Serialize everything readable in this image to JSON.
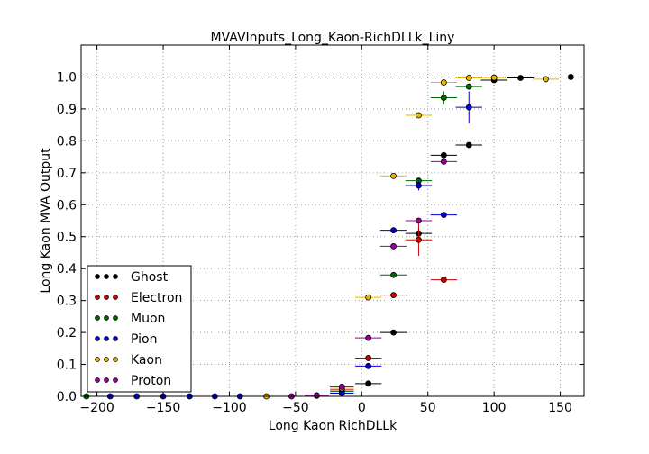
{
  "chart_data": {
    "type": "scatter",
    "title": "MVAVInputs_Long_Kaon-RichDLLk_Liny",
    "xlabel": "Long Kaon RichDLLk",
    "ylabel": "Long Kaon MVA Output",
    "xlim": [
      -212,
      168
    ],
    "ylim": [
      0.0,
      1.1
    ],
    "x_ticks": [
      -200,
      -150,
      -100,
      -50,
      0,
      50,
      100,
      150
    ],
    "x_tick_labels": [
      "−200",
      "−150",
      "−100",
      "−50",
      "0",
      "50",
      "100",
      "150"
    ],
    "y_ticks": [
      0.0,
      0.1,
      0.2,
      0.3,
      0.4,
      0.5,
      0.6,
      0.7,
      0.8,
      0.9,
      1.0
    ],
    "y_tick_labels": [
      "0.0",
      "0.1",
      "0.2",
      "0.3",
      "0.4",
      "0.5",
      "0.6",
      "0.7",
      "0.8",
      "0.9",
      "1.0"
    ],
    "reference_line": 1.0,
    "grid": true,
    "legend_position": "lower-left",
    "series": [
      {
        "name": "Ghost",
        "color": "#000000",
        "points": [
          {
            "x": -15,
            "y": 0.03,
            "xerr": 9,
            "yerr": 0.004
          },
          {
            "x": 5,
            "y": 0.04,
            "xerr": 10,
            "yerr": 0.004
          },
          {
            "x": 24,
            "y": 0.2,
            "xerr": 10,
            "yerr": 0.005
          },
          {
            "x": 43,
            "y": 0.51,
            "xerr": 10,
            "yerr": 0.02
          },
          {
            "x": 62,
            "y": 0.755,
            "xerr": 10,
            "yerr": 0.008
          },
          {
            "x": 81,
            "y": 0.787,
            "xerr": 10,
            "yerr": 0.008
          },
          {
            "x": 100,
            "y": 0.99,
            "xerr": 10,
            "yerr": 0.003
          },
          {
            "x": 120,
            "y": 0.997,
            "xerr": 10,
            "yerr": 0.002
          },
          {
            "x": 158,
            "y": 1.0,
            "xerr": 10,
            "yerr": 0.001
          }
        ]
      },
      {
        "name": "Electron",
        "color": "#cc0000",
        "points": [
          {
            "x": -15,
            "y": 0.02,
            "xerr": 9,
            "yerr": 0.004
          },
          {
            "x": 5,
            "y": 0.12,
            "xerr": 10,
            "yerr": 0.006
          },
          {
            "x": 24,
            "y": 0.317,
            "xerr": 10,
            "yerr": 0.008
          },
          {
            "x": 43,
            "y": 0.49,
            "xerr": 10,
            "yerr": 0.05
          },
          {
            "x": 62,
            "y": 0.365,
            "xerr": 10,
            "yerr": 0.006
          }
        ]
      },
      {
        "name": "Muon",
        "color": "#006600",
        "points": [
          {
            "x": -15,
            "y": 0.015,
            "xerr": 9,
            "yerr": 0.004
          },
          {
            "x": 24,
            "y": 0.38,
            "xerr": 10,
            "yerr": 0.008
          },
          {
            "x": 43,
            "y": 0.675,
            "xerr": 10,
            "yerr": 0.01
          },
          {
            "x": 62,
            "y": 0.935,
            "xerr": 10,
            "yerr": 0.02
          },
          {
            "x": 81,
            "y": 0.97,
            "xerr": 10,
            "yerr": 0.01
          },
          {
            "x": -208,
            "y": 0.0,
            "xerr": 0,
            "yerr": 0
          }
        ]
      },
      {
        "name": "Pion",
        "color": "#0000cc",
        "points": [
          {
            "x": -190,
            "y": 0.0,
            "xerr": 0,
            "yerr": 0
          },
          {
            "x": -170,
            "y": 0.0,
            "xerr": 0,
            "yerr": 0
          },
          {
            "x": -150,
            "y": 0.0,
            "xerr": 0,
            "yerr": 0
          },
          {
            "x": -130,
            "y": 0.0,
            "xerr": 0,
            "yerr": 0
          },
          {
            "x": -111,
            "y": 0.0,
            "xerr": 0,
            "yerr": 0
          },
          {
            "x": -92,
            "y": 0.0,
            "xerr": 0,
            "yerr": 0
          },
          {
            "x": -15,
            "y": 0.01,
            "xerr": 9,
            "yerr": 0.003
          },
          {
            "x": 5,
            "y": 0.095,
            "xerr": 10,
            "yerr": 0.005
          },
          {
            "x": 24,
            "y": 0.52,
            "xerr": 10,
            "yerr": 0.008
          },
          {
            "x": 43,
            "y": 0.66,
            "xerr": 10,
            "yerr": 0.015
          },
          {
            "x": 62,
            "y": 0.568,
            "xerr": 10,
            "yerr": 0.006
          },
          {
            "x": 81,
            "y": 0.905,
            "xerr": 10,
            "yerr": 0.05
          }
        ]
      },
      {
        "name": "Kaon",
        "color": "#e6b800",
        "points": [
          {
            "x": -72,
            "y": 0.0,
            "xerr": 0,
            "yerr": 0
          },
          {
            "x": -34,
            "y": 0.002,
            "xerr": 9,
            "yerr": 0.002
          },
          {
            "x": -15,
            "y": 0.025,
            "xerr": 9,
            "yerr": 0.003
          },
          {
            "x": 5,
            "y": 0.31,
            "xerr": 10,
            "yerr": 0.004
          },
          {
            "x": 24,
            "y": 0.69,
            "xerr": 10,
            "yerr": 0.004
          },
          {
            "x": 43,
            "y": 0.88,
            "xerr": 10,
            "yerr": 0.004
          },
          {
            "x": 62,
            "y": 0.983,
            "xerr": 10,
            "yerr": 0.002
          },
          {
            "x": 81,
            "y": 0.997,
            "xerr": 10,
            "yerr": 0.001
          },
          {
            "x": 100,
            "y": 0.998,
            "xerr": 10,
            "yerr": 0.001
          },
          {
            "x": 139,
            "y": 0.993,
            "xerr": 10,
            "yerr": 0.001
          }
        ]
      },
      {
        "name": "Proton",
        "color": "#990099",
        "points": [
          {
            "x": -53,
            "y": 0.0,
            "xerr": 0,
            "yerr": 0
          },
          {
            "x": -34,
            "y": 0.003,
            "xerr": 9,
            "yerr": 0.002
          },
          {
            "x": -15,
            "y": 0.03,
            "xerr": 9,
            "yerr": 0.004
          },
          {
            "x": 5,
            "y": 0.183,
            "xerr": 10,
            "yerr": 0.005
          },
          {
            "x": 24,
            "y": 0.47,
            "xerr": 10,
            "yerr": 0.007
          },
          {
            "x": 43,
            "y": 0.55,
            "xerr": 10,
            "yerr": 0.008
          },
          {
            "x": 62,
            "y": 0.735,
            "xerr": 10,
            "yerr": 0.008
          }
        ]
      }
    ]
  }
}
